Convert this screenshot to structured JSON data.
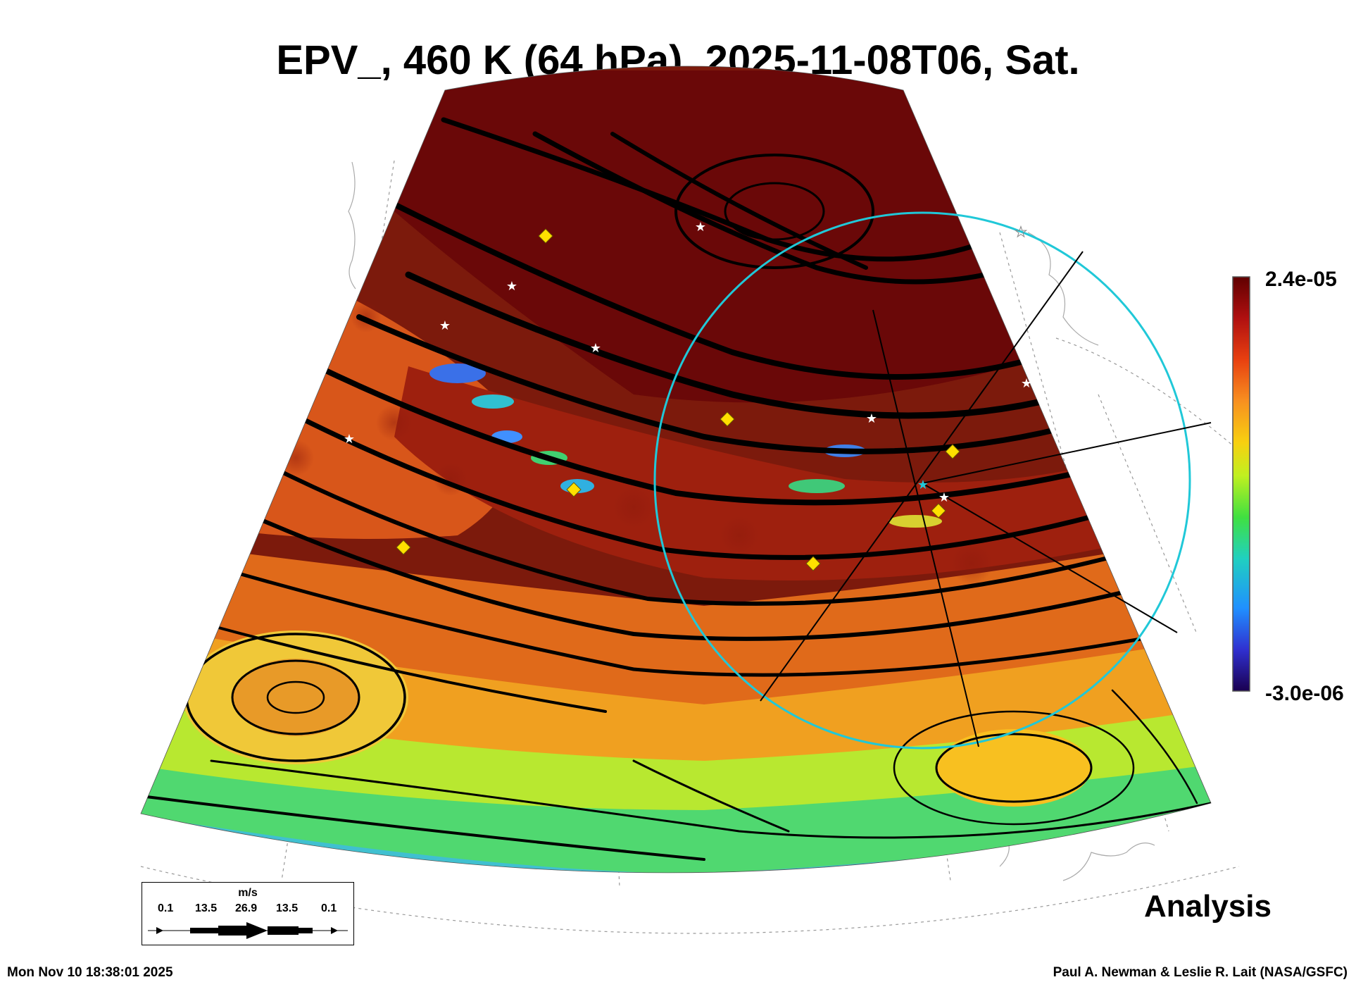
{
  "title": "EPV_, 460 K (64 hPa), 2025-11-08T06, Sat.",
  "colorbar": {
    "max_label": "2.4e-05",
    "min_label": "-3.0e-06",
    "colors": [
      "#1a0050",
      "#3030d0",
      "#2090ff",
      "#20d0c0",
      "#40e040",
      "#c0f020",
      "#f8d010",
      "#f89020",
      "#e84010",
      "#b01010",
      "#600000"
    ]
  },
  "wind_legend": {
    "unit": "m/s",
    "ticks": [
      "0.1",
      "13.5",
      "26.9",
      "13.5",
      "0.1"
    ]
  },
  "analysis_label": "Analysis",
  "timestamp": "Mon Nov 10 18:38:01 2025",
  "credit": "Paul A. Newman & Leslie R. Lait (NASA/GSFC)",
  "map": {
    "colors": {
      "high": "#6e0a0a",
      "mid": "#c83a12",
      "orange": "#e8701c",
      "yellow": "#f0c020",
      "green": "#60e060",
      "blue": "#2060e0",
      "circle": "#20c8d8"
    },
    "stations_star": 10,
    "stations_diamond": 7
  }
}
